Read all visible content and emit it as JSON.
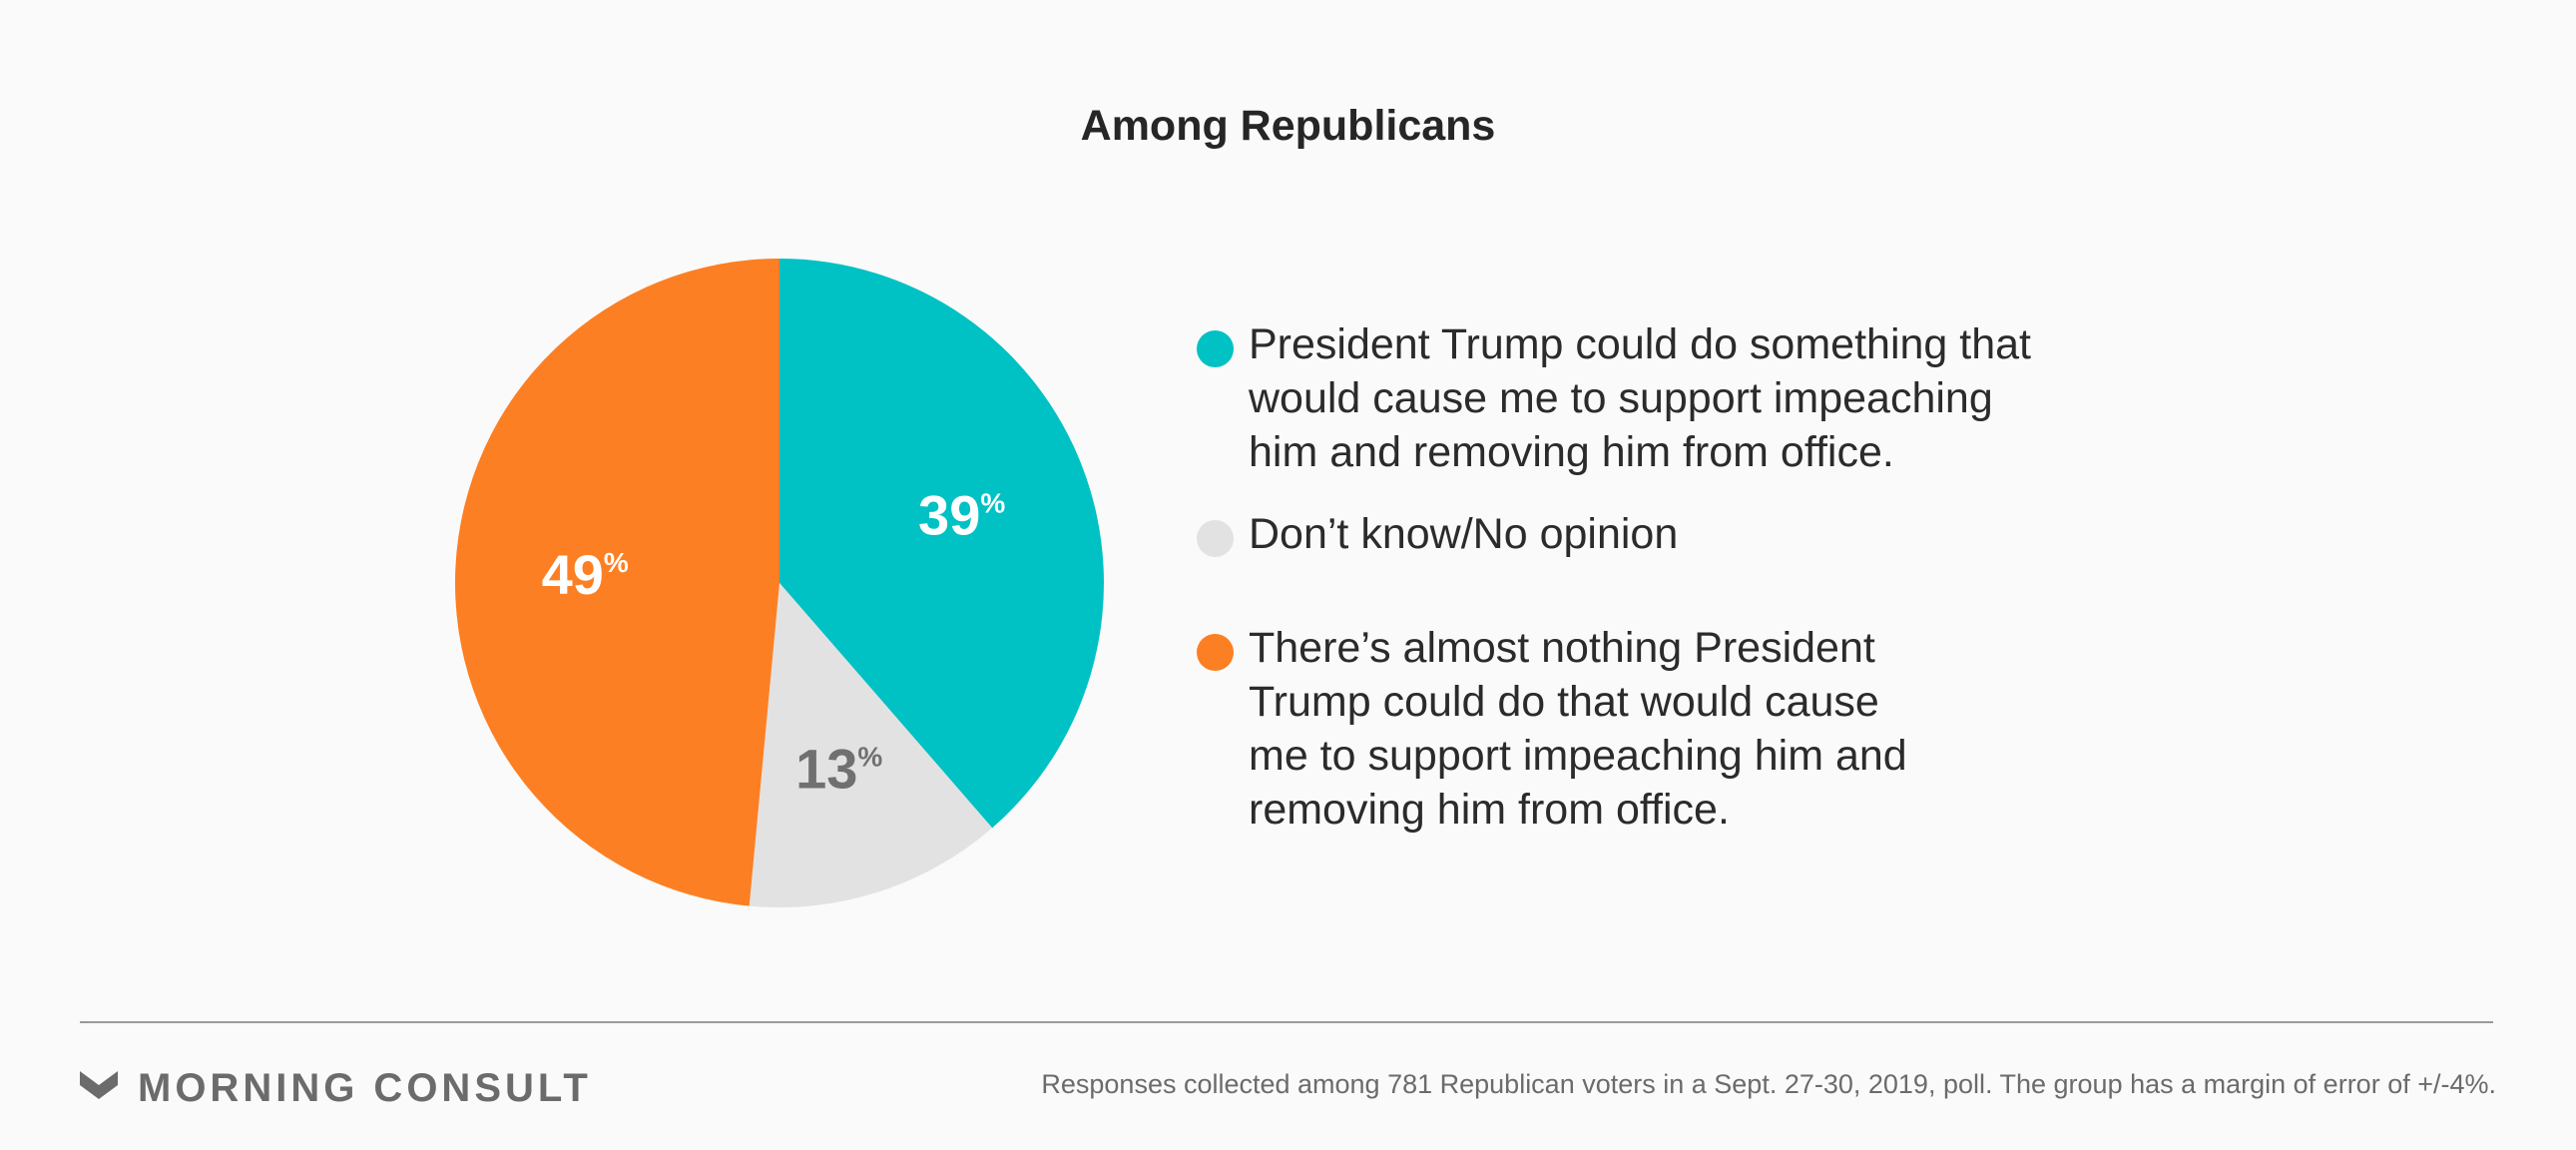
{
  "chart_data": {
    "type": "pie",
    "title": "Among Republicans",
    "slices": [
      {
        "label": "President Trump could do something that would cause me to support impeaching him and removing him from office.",
        "value": 39,
        "display": "39",
        "unit": "%",
        "color": "#00c1c4",
        "label_color": "#ffffff"
      },
      {
        "label": "Don’t know/No opinion",
        "value": 13,
        "display": "13",
        "unit": "%",
        "color": "#e2e2e2",
        "label_color": "#707070"
      },
      {
        "label": "There’s almost nothing President Trump could do that would cause me to support impeaching him and removing him from office.",
        "value": 49,
        "display": "49",
        "unit": "%",
        "color": "#fd7f23",
        "label_color": "#ffffff"
      }
    ],
    "start": "12 o'clock",
    "direction": "clockwise",
    "legend_position": "right"
  },
  "legend_lines": [
    [
      "President Trump could do something that",
      "would cause me to support impeaching",
      "him and removing him from office."
    ],
    [
      "Don’t know/No opinion"
    ],
    [
      "There’s almost nothing President",
      "Trump could do that would cause",
      "me to support impeaching him and",
      "removing him from office."
    ]
  ],
  "footer": {
    "brand": "MORNING CONSULT",
    "logo_icon": "chevron-down-icon",
    "logo_color": "#6b6b6b",
    "note": "Responses collected among 781 Republican voters in a Sept. 27-30, 2019, poll. The group has a margin of error of +/-4%."
  }
}
